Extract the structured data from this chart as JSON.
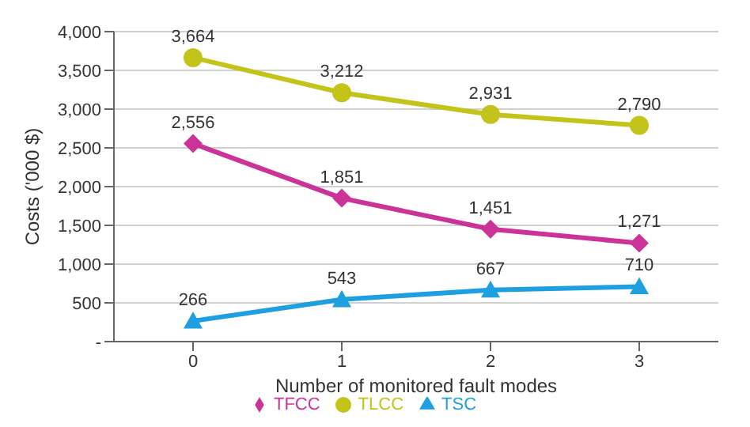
{
  "chart_data": {
    "type": "line",
    "xlabel": "Number of monitored fault modes",
    "ylabel": "Costs ('000 $)",
    "categories": [
      "0",
      "1",
      "2",
      "3"
    ],
    "series": [
      {
        "name": "TFCC",
        "color": "#cc3399",
        "marker": "diamond",
        "values": [
          2556,
          1851,
          1451,
          1271
        ],
        "value_labels": [
          "2,556",
          "1,851",
          "1,451",
          "1,271"
        ]
      },
      {
        "name": "TSC",
        "color": "#1ea0e0",
        "marker": "triangle",
        "values": [
          266,
          543,
          667,
          710
        ],
        "value_labels": [
          "266",
          "543",
          "667",
          "710"
        ]
      },
      {
        "name": "TLCC",
        "color": "#c3c31a",
        "marker": "circle",
        "values": [
          3664,
          3212,
          2931,
          2790
        ],
        "value_labels": [
          "3,664",
          "3,212",
          "2,931",
          "2,790"
        ]
      }
    ],
    "ylim": [
      0,
      4000
    ],
    "yticks": [
      {
        "value": 0,
        "label": "-"
      },
      {
        "value": 500,
        "label": "500"
      },
      {
        "value": 1000,
        "label": "1,000"
      },
      {
        "value": 1500,
        "label": "1,500"
      },
      {
        "value": 2000,
        "label": "2,000"
      },
      {
        "value": 2500,
        "label": "2,500"
      },
      {
        "value": 3000,
        "label": "3,000"
      },
      {
        "value": 3500,
        "label": "3,500"
      },
      {
        "value": 4000,
        "label": "4,000"
      }
    ],
    "grid": "y",
    "legend": "bottom",
    "line_style": "solid"
  }
}
